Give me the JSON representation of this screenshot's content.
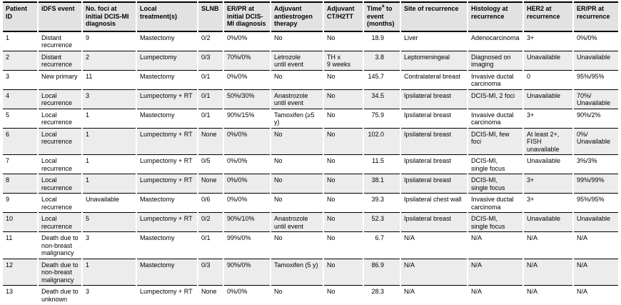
{
  "colors": {
    "header_bg": "#e2e2e2",
    "zebra_bg": "#ececec",
    "row_bg": "#ffffff",
    "line": "#000000"
  },
  "chart_data": {
    "type": "table",
    "columns": [
      {
        "label": "Patient ID"
      },
      {
        "label": "iDFS event"
      },
      {
        "label": "No. foci at initial DCIS-MI diagnosis"
      },
      {
        "label": "Local treatment(s)"
      },
      {
        "label": "SLNB"
      },
      {
        "label": "ER/PR at initial DCIS-MI diagnosis"
      },
      {
        "label": "Adjuvant antiestrogen therapy"
      },
      {
        "label": "Adjuvant CT/H2TT"
      },
      {
        "label": "Time",
        "sup": "a",
        "rest": " to event (months)"
      },
      {
        "label": "Site of recurrence"
      },
      {
        "label": "Histology at recurrence"
      },
      {
        "label": "HER2 at recurrence"
      },
      {
        "label": "ER/PR at recurrence"
      }
    ],
    "rows": [
      [
        "1",
        "Distant\nrecurrence",
        "9",
        "Mastectomy",
        "0/2",
        "0%/0%",
        "No",
        "No",
        "18.9",
        "Liver",
        "Adenocarcinoma",
        "3+",
        "0%/0%"
      ],
      [
        "2",
        "Distant\nrecurrence",
        "2",
        "Lumpectomy",
        "0/3",
        "70%/0%",
        "Letrozole\nuntil event",
        "TH x\n9 weeks",
        "3.8",
        "Leptomeningeal",
        "Diagnosed on\nimaging",
        "Unavailable",
        "Unavailable"
      ],
      [
        "3",
        "New primary",
        "11",
        "Mastectomy",
        "0/1",
        "0%/0%",
        "No",
        "No",
        "145.7",
        "Contralateral breast",
        "Invasive ductal\ncarcinoma",
        "0",
        "95%/95%"
      ],
      [
        "4",
        "Local\nrecurrence",
        "3",
        "Lumpectomy + RT",
        "0/1",
        "50%/30%",
        "Anastrozole\nuntil event",
        "No",
        "34.5",
        "Ipsilateral breast",
        "DCIS-MI, 2 foci",
        "Unavailable",
        "70%/\nUnavailable"
      ],
      [
        "5",
        "Local\nrecurrence",
        "1",
        "Mastectomy",
        "0/1",
        "90%/15%",
        "Tamoxifen (≥5 y)",
        "No",
        "75.9",
        "Ipsilateral breast",
        "Invasive ductal\ncarcinoma",
        "3+",
        "90%/2%"
      ],
      [
        "6",
        "Local\nrecurrence",
        "1",
        "Lumpectomy + RT",
        "None",
        "0%/0%",
        "No",
        "No",
        "102.0",
        "Ipsilateral breast",
        "DCIS-MI, few foci",
        "At least 2+,\nFISH\nunavailable",
        "0%/\nUnavailable"
      ],
      [
        "7",
        "Local\nrecurrence",
        "1",
        "Lumpectomy + RT",
        "0/5",
        "0%/0%",
        "No",
        "No",
        "11.5",
        "Ipsilateral breast",
        "DCIS-MI,\nsingle focus",
        "Unavailable",
        "3%/3%"
      ],
      [
        "8",
        "Local\nrecurrence",
        "1",
        "Lumpectomy + RT",
        "None",
        "0%/0%",
        "No",
        "No",
        "38.1",
        "Ipsilateral breast",
        "DCIS-MI,\nsingle focus",
        "3+",
        "99%/99%"
      ],
      [
        "9",
        "Local\nrecurrence",
        "Unavailable",
        "Mastectomy",
        "0/6",
        "0%/0%",
        "No",
        "No",
        "39.3",
        "Ipsilateral chest wall",
        "Invasive ductal\ncarcinoma",
        "3+",
        "95%/95%"
      ],
      [
        "10",
        "Local\nrecurrence",
        "5",
        "Lumpectomy + RT",
        "0/2",
        "90%/10%",
        "Anastrozole\nuntil event",
        "No",
        "52.3",
        "Ipsilateral breast",
        "DCIS-MI,\nsingle focus",
        "Unavailable",
        "Unavailable"
      ],
      [
        "11",
        "Death due to\nnon-breast\nmalignancy",
        "3",
        "Mastectomy",
        "0/1",
        "99%/0%",
        "No",
        "No",
        "6.7",
        "N/A",
        "N/A",
        "N/A",
        "N/A"
      ],
      [
        "12",
        "Death due to\nnon-breast\nmalignancy",
        "1",
        "Mastectomy",
        "0/3",
        "90%/0%",
        "Tamoxifen (5 y)",
        "No",
        "86.9",
        "N/A",
        "N/A",
        "N/A",
        "N/A"
      ],
      [
        "13",
        "Death due to\nunknown\ncause",
        "3",
        "Lumpectomy + RT",
        "None",
        "0%/0%",
        "No",
        "No",
        "28.3",
        "N/A",
        "N/A",
        "N/A",
        "N/A"
      ]
    ]
  }
}
